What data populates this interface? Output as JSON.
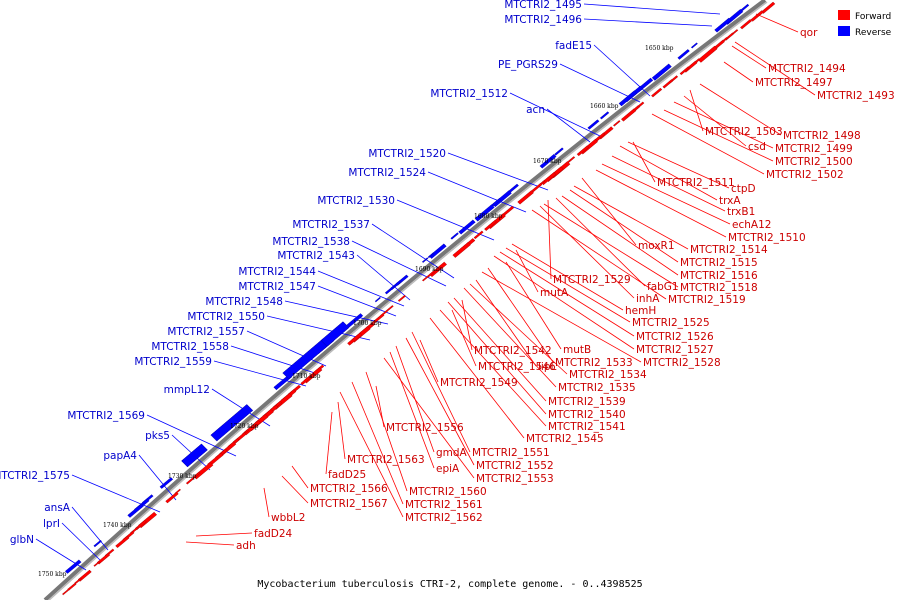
{
  "caption": "Mycobacterium tuberculosis CTRI-2, complete genome. - 0..4398525",
  "legend": [
    {
      "label": "Forward",
      "color": "#ff0000"
    },
    {
      "label": "Reverse",
      "color": "#0000ff"
    }
  ],
  "colors": {
    "forward": "#ff0000",
    "reverse": "#0000ff",
    "backbone": "#555555",
    "forward_label": "#cc0000",
    "reverse_label": "#0000cc"
  },
  "ticks": [
    "1650 kbp",
    "1660 kbp",
    "1670 kbp",
    "1680 kbp",
    "1690 kbp",
    "1700 kbp",
    "1710 kbp",
    "1720 kbp",
    "1730 kbp",
    "1740 kbp",
    "1750 kbp"
  ],
  "forward_labels": [
    "qor",
    "MTCTRI2_1494",
    "MTCTRI2_1497",
    "MTCTRI2_1493",
    "MTCTRI2_1503",
    "MTCTRI2_1498",
    "csd",
    "MTCTRI2_1499",
    "MTCTRI2_1500",
    "MTCTRI2_1502",
    "MTCTRI2_1511",
    "ctpD",
    "trxA",
    "trxB1",
    "echA12",
    "MTCTRI2_1510",
    "moxR1",
    "MTCTRI2_1514",
    "MTCTRI2_1515",
    "MTCTRI2_1516",
    "MTCTRI2_1529",
    "fabG1",
    "MTCTRI2_1518",
    "inhA",
    "MTCTRI2_1519",
    "mutA",
    "hemH",
    "MTCTRI2_1525",
    "MTCTRI2_1526",
    "mutB",
    "MTCTRI2_1527",
    "MTCTRI2_1542",
    "MTCTRI2_1533",
    "MTCTRI2_1528",
    "lipL",
    "MTCTRI2_1546",
    "MTCTRI2_1534",
    "MTCTRI2_1549",
    "MTCTRI2_1535",
    "MTCTRI2_1539",
    "MTCTRI2_1540",
    "MTCTRI2_1541",
    "MTCTRI2_1556",
    "MTCTRI2_1545",
    "MTCTRI2_1551",
    "gmdA",
    "MTCTRI2_1563",
    "MTCTRI2_1552",
    "fadD25",
    "epiA",
    "MTCTRI2_1553",
    "MTCTRI2_1566",
    "MTCTRI2_1560",
    "MTCTRI2_1567",
    "MTCTRI2_1561",
    "MTCTRI2_1562",
    "wbbL2",
    "fadD24",
    "adh"
  ],
  "reverse_labels": [
    "MTCTRI2_1495",
    "MTCTRI2_1496",
    "fadE15",
    "PE_PGRS29",
    "MTCTRI2_1512",
    "acn",
    "MTCTRI2_1520",
    "MTCTRI2_1524",
    "MTCTRI2_1530",
    "MTCTRI2_1537",
    "MTCTRI2_1538",
    "MTCTRI2_1543",
    "MTCTRI2_1544",
    "MTCTRI2_1547",
    "MTCTRI2_1548",
    "MTCTRI2_1550",
    "MTCTRI2_1557",
    "MTCTRI2_1558",
    "MTCTRI2_1559",
    "mmpL12",
    "MTCTRI2_1569",
    "pks5",
    "papA4",
    "MTCTRI2_1575",
    "ansA",
    "lprI",
    "glbN"
  ]
}
